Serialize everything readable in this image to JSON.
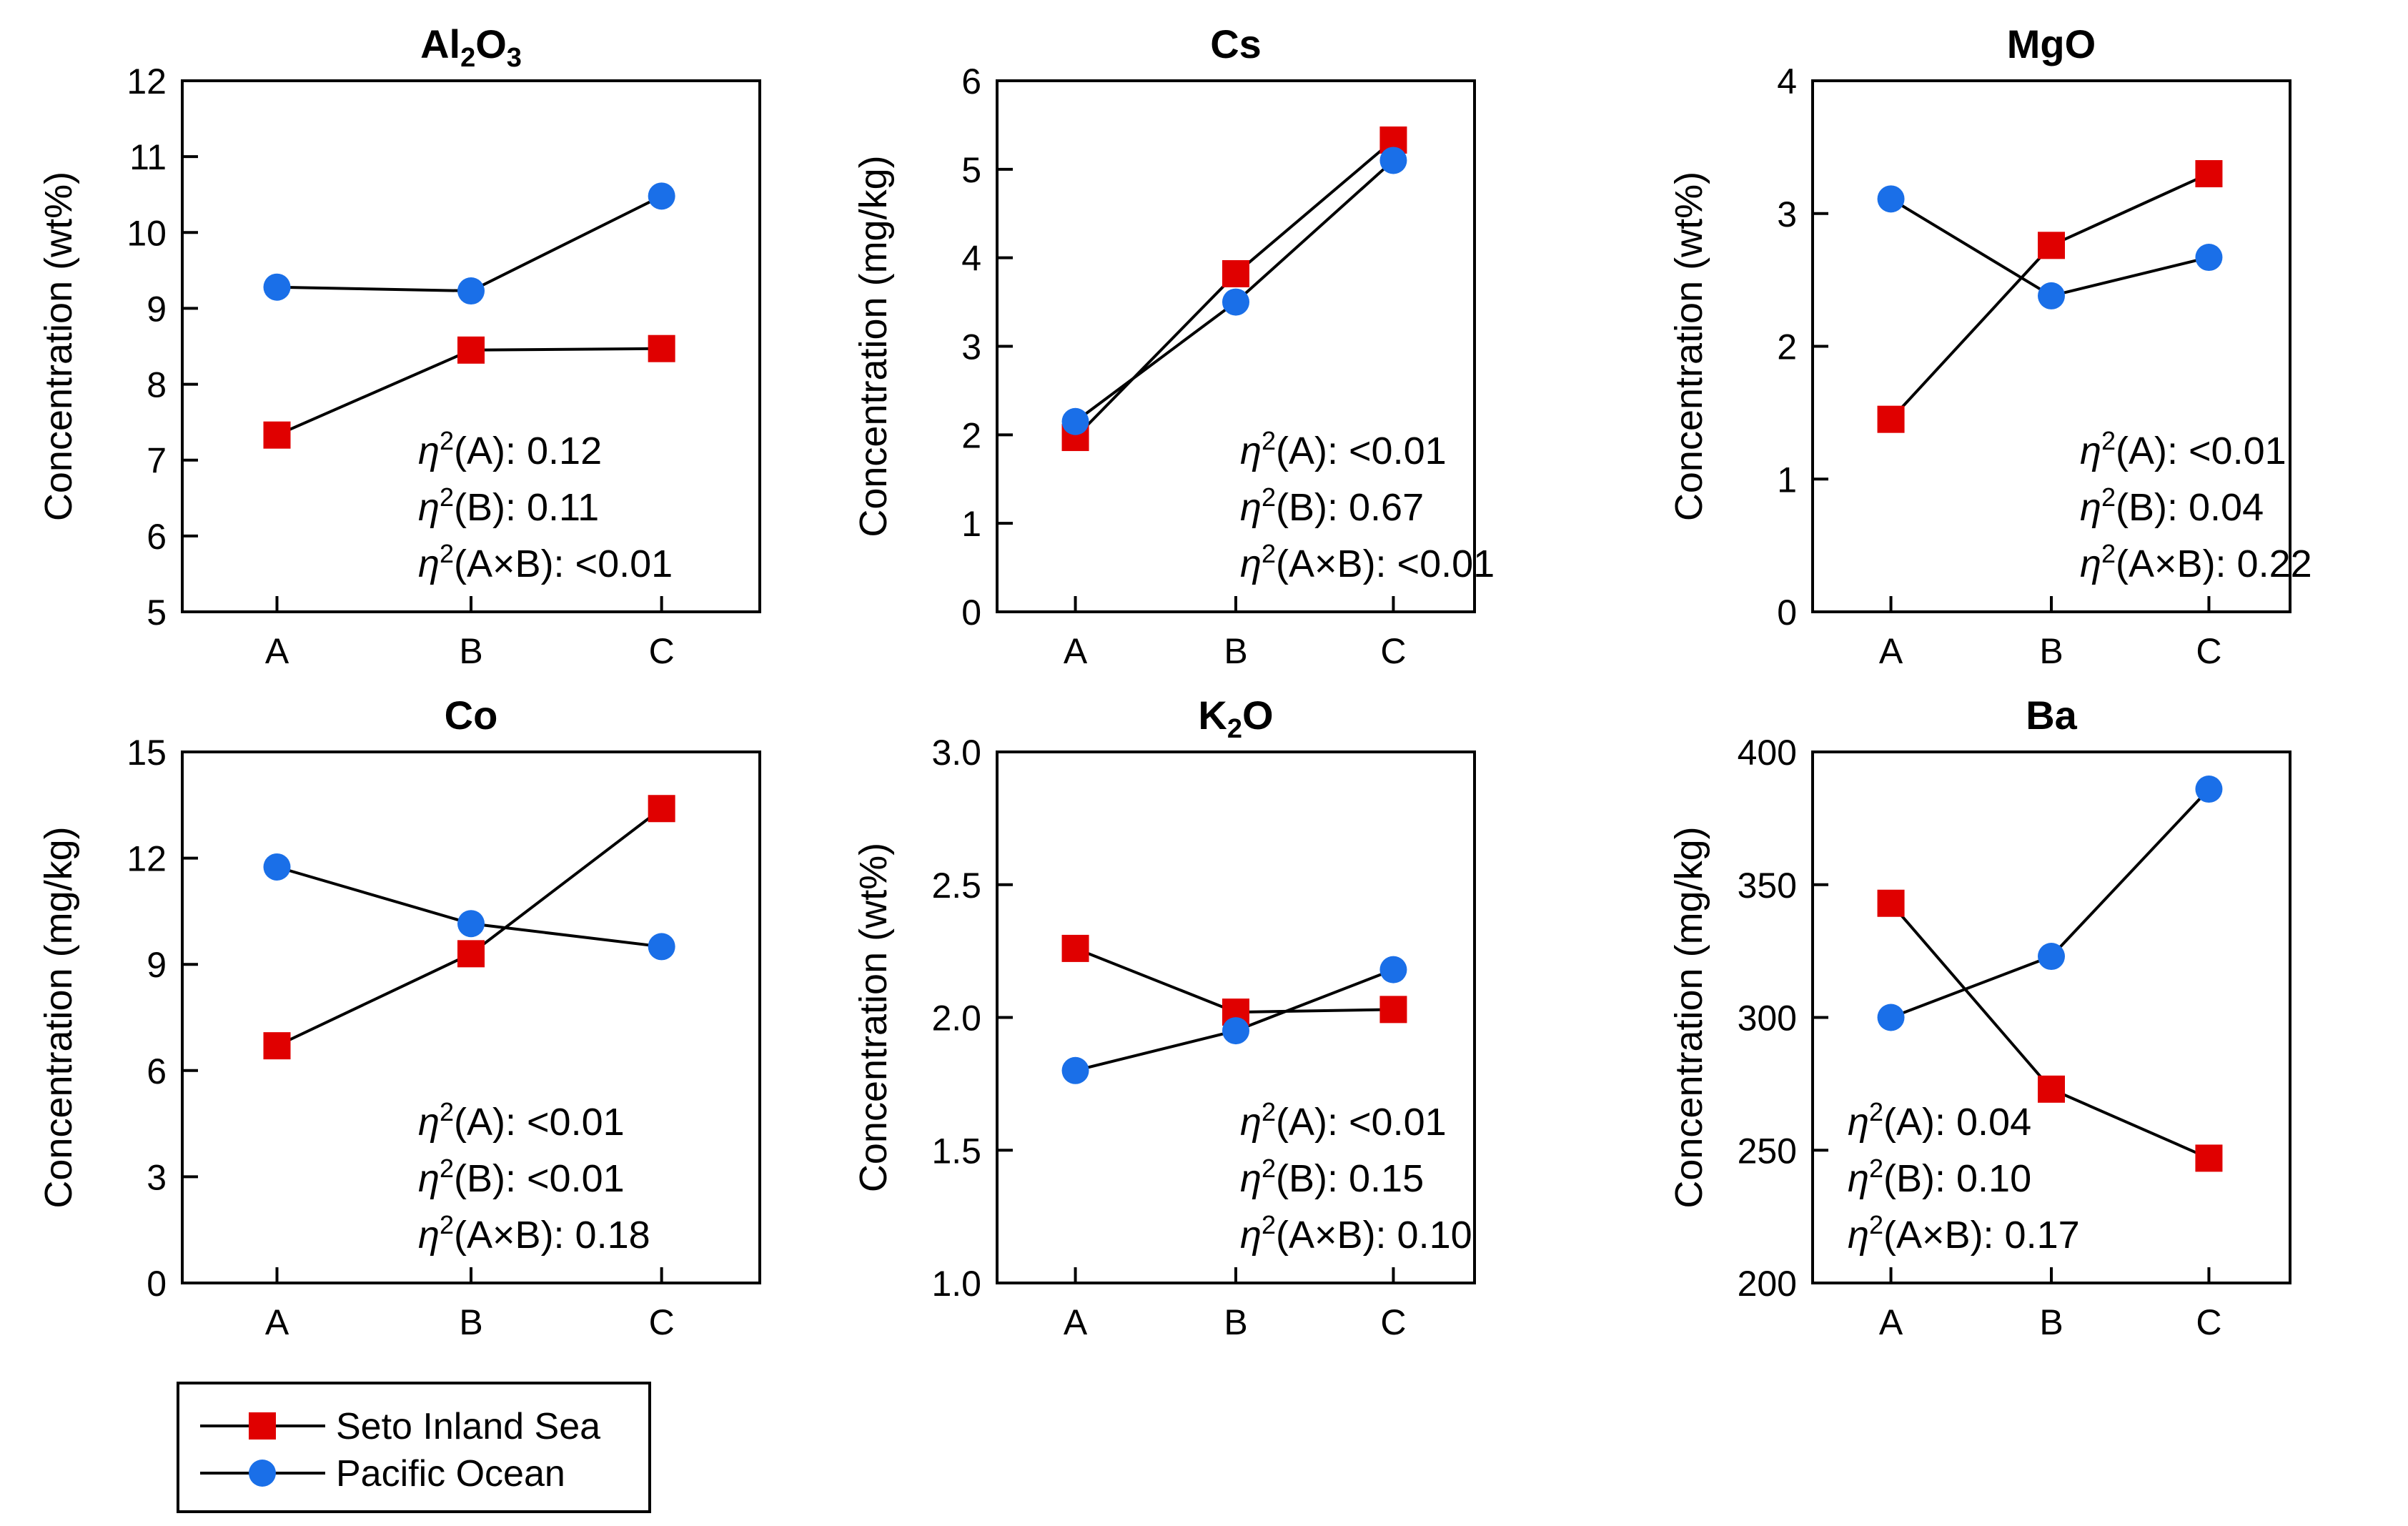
{
  "chart_data": [
    {
      "type": "line",
      "title": "Al2O3",
      "title_parts": [
        "Al",
        "2",
        "O",
        "3"
      ],
      "ylabel": "Concentration (wt%)",
      "categories": [
        "A",
        "B",
        "C"
      ],
      "ylim": [
        5,
        12
      ],
      "yticks": [
        "5",
        "6",
        "7",
        "8",
        "9",
        "10",
        "11",
        "12"
      ],
      "series": [
        {
          "name": "Seto Inland Sea",
          "values": [
            7.33,
            8.45,
            8.47
          ]
        },
        {
          "name": "Pacific Ocean",
          "values": [
            9.28,
            9.23,
            10.48
          ]
        }
      ],
      "annotations": [
        {
          "label": "η",
          "text": "(A): 0.12"
        },
        {
          "label": "η",
          "text": "(B): 0.11"
        },
        {
          "label": "η",
          "text": "(A×B): <0.01"
        }
      ]
    },
    {
      "type": "line",
      "title": "Cs",
      "title_parts": [
        "Cs"
      ],
      "ylabel": "Concentration (mg/kg)",
      "categories": [
        "A",
        "B",
        "C"
      ],
      "ylim": [
        0,
        6
      ],
      "yticks": [
        "0",
        "1",
        "2",
        "3",
        "4",
        "5",
        "6"
      ],
      "series": [
        {
          "name": "Seto Inland Sea",
          "values": [
            1.97,
            3.82,
            5.33
          ]
        },
        {
          "name": "Pacific Ocean",
          "values": [
            2.15,
            3.5,
            5.1
          ]
        }
      ],
      "annotations": [
        {
          "label": "η",
          "text": "(A): <0.01"
        },
        {
          "label": "η",
          "text": "(B): 0.67"
        },
        {
          "label": "η",
          "text": "(A×B): <0.01"
        }
      ]
    },
    {
      "type": "line",
      "title": "MgO",
      "title_parts": [
        "MgO"
      ],
      "ylabel": "Concentration (wt%)",
      "categories": [
        "A",
        "B",
        "C"
      ],
      "ylim": [
        0,
        4
      ],
      "yticks": [
        "0",
        "1",
        "2",
        "3",
        "4"
      ],
      "series": [
        {
          "name": "Seto Inland Sea",
          "values": [
            1.45,
            2.76,
            3.3
          ]
        },
        {
          "name": "Pacific Ocean",
          "values": [
            3.11,
            2.38,
            2.67
          ]
        }
      ],
      "annotations": [
        {
          "label": "η",
          "text": "(A): <0.01"
        },
        {
          "label": "η",
          "text": "(B): 0.04"
        },
        {
          "label": "η",
          "text": "(A×B): 0.22"
        }
      ]
    },
    {
      "type": "line",
      "title": "Co",
      "title_parts": [
        "Co"
      ],
      "ylabel": "Concentration (mg/kg)",
      "categories": [
        "A",
        "B",
        "C"
      ],
      "ylim": [
        0,
        15
      ],
      "yticks": [
        "0",
        "3",
        "6",
        "9",
        "12",
        "15"
      ],
      "series": [
        {
          "name": "Seto Inland Sea",
          "values": [
            6.7,
            9.3,
            13.4
          ]
        },
        {
          "name": "Pacific Ocean",
          "values": [
            11.75,
            10.15,
            9.5
          ]
        }
      ],
      "annotations": [
        {
          "label": "η",
          "text": "(A): <0.01"
        },
        {
          "label": "η",
          "text": "(B): <0.01"
        },
        {
          "label": "η",
          "text": "(A×B): 0.18"
        }
      ]
    },
    {
      "type": "line",
      "title": "K2O",
      "title_parts": [
        "K",
        "2",
        "O"
      ],
      "ylabel": "Concentration (wt%)",
      "categories": [
        "A",
        "B",
        "C"
      ],
      "ylim": [
        1.0,
        3.0
      ],
      "yticks": [
        "1.0",
        "1.5",
        "2.0",
        "2.5",
        "3.0"
      ],
      "series": [
        {
          "name": "Seto Inland Sea",
          "values": [
            2.26,
            2.02,
            2.03
          ]
        },
        {
          "name": "Pacific Ocean",
          "values": [
            1.8,
            1.95,
            2.18
          ]
        }
      ],
      "annotations": [
        {
          "label": "η",
          "text": "(A): <0.01"
        },
        {
          "label": "η",
          "text": "(B): 0.15"
        },
        {
          "label": "η",
          "text": "(A×B): 0.10"
        }
      ]
    },
    {
      "type": "line",
      "title": "Ba",
      "title_parts": [
        "Ba"
      ],
      "ylabel": "Concentration (mg/kg)",
      "categories": [
        "A",
        "B",
        "C"
      ],
      "ylim": [
        200,
        400
      ],
      "yticks": [
        "200",
        "250",
        "300",
        "350",
        "400"
      ],
      "series": [
        {
          "name": "Seto Inland Sea",
          "values": [
            343,
            273,
            247
          ]
        },
        {
          "name": "Pacific Ocean",
          "values": [
            300,
            323,
            386
          ]
        }
      ],
      "annotations": [
        {
          "label": "η",
          "text": "(A): 0.04"
        },
        {
          "label": "η",
          "text": "(B): 0.10"
        },
        {
          "label": "η",
          "text": "(A×B): 0.17"
        }
      ]
    }
  ],
  "legend": {
    "placement": "bottom-left",
    "entries": [
      {
        "name": "Seto Inland Sea",
        "marker": "square",
        "color": "#e00000"
      },
      {
        "name": "Pacific Ocean",
        "marker": "circle",
        "color": "#1a6fe8"
      }
    ]
  },
  "colors": {
    "seto": "#e00000",
    "pacific": "#1a6fe8",
    "line": "#000000"
  }
}
